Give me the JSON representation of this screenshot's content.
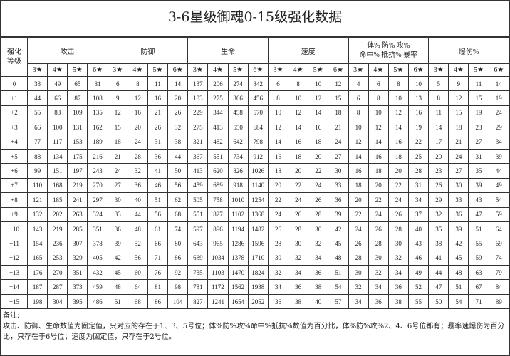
{
  "title": "3-6星级御魂0-15级强化数据",
  "level_header": "强化等级",
  "groups": [
    "攻击",
    "防御",
    "生命",
    "速度",
    "体% 防% 攻%\n命中% 抵抗% 暴率",
    "爆伤%"
  ],
  "stars": [
    "3★",
    "4★",
    "5★",
    "6★"
  ],
  "rows": [
    {
      "level": "0",
      "values": [
        33,
        49,
        65,
        81,
        6,
        8,
        11,
        14,
        137,
        206,
        274,
        342,
        6,
        8,
        10,
        12,
        4,
        6,
        8,
        10,
        5,
        9,
        11,
        14
      ]
    },
    {
      "level": "+1",
      "values": [
        44,
        66,
        87,
        108,
        9,
        12,
        16,
        20,
        183,
        275,
        366,
        456,
        8,
        10,
        12,
        15,
        6,
        8,
        10,
        13,
        8,
        12,
        15,
        19
      ]
    },
    {
      "level": "+2",
      "values": [
        55,
        83,
        109,
        135,
        12,
        16,
        21,
        26,
        229,
        344,
        458,
        570,
        10,
        12,
        14,
        18,
        8,
        10,
        12,
        16,
        11,
        15,
        19,
        24
      ]
    },
    {
      "level": "+3",
      "values": [
        66,
        100,
        131,
        162,
        15,
        20,
        26,
        32,
        275,
        413,
        550,
        684,
        12,
        14,
        16,
        21,
        10,
        12,
        14,
        19,
        14,
        18,
        23,
        29
      ]
    },
    {
      "level": "+4",
      "values": [
        77,
        117,
        153,
        189,
        18,
        24,
        31,
        38,
        321,
        482,
        642,
        798,
        14,
        16,
        18,
        24,
        12,
        14,
        16,
        22,
        17,
        21,
        27,
        34
      ]
    },
    {
      "level": "+5",
      "values": [
        88,
        134,
        175,
        216,
        21,
        28,
        36,
        44,
        367,
        551,
        734,
        912,
        16,
        18,
        20,
        27,
        14,
        16,
        18,
        25,
        20,
        24,
        31,
        39
      ]
    },
    {
      "level": "+6",
      "values": [
        99,
        151,
        197,
        243,
        24,
        32,
        41,
        50,
        413,
        620,
        826,
        1026,
        18,
        20,
        22,
        30,
        16,
        18,
        20,
        28,
        23,
        27,
        35,
        44
      ]
    },
    {
      "level": "+7",
      "values": [
        110,
        168,
        219,
        270,
        27,
        36,
        46,
        56,
        459,
        689,
        918,
        1140,
        20,
        22,
        24,
        33,
        18,
        20,
        22,
        31,
        26,
        30,
        39,
        49
      ]
    },
    {
      "level": "+8",
      "values": [
        121,
        185,
        241,
        297,
        30,
        40,
        51,
        62,
        505,
        758,
        1010,
        1254,
        22,
        24,
        26,
        36,
        20,
        22,
        24,
        34,
        29,
        33,
        43,
        54
      ]
    },
    {
      "level": "+9",
      "values": [
        132,
        202,
        263,
        324,
        33,
        44,
        56,
        68,
        551,
        827,
        1102,
        1368,
        24,
        26,
        28,
        39,
        22,
        24,
        26,
        37,
        32,
        36,
        47,
        59
      ]
    },
    {
      "level": "+10",
      "values": [
        143,
        219,
        285,
        351,
        36,
        48,
        61,
        74,
        597,
        896,
        1194,
        1482,
        26,
        28,
        30,
        42,
        24,
        26,
        28,
        40,
        35,
        39,
        51,
        64
      ]
    },
    {
      "level": "+11",
      "values": [
        154,
        236,
        307,
        378,
        39,
        52,
        66,
        80,
        643,
        965,
        1286,
        1596,
        28,
        30,
        32,
        45,
        26,
        28,
        30,
        43,
        38,
        42,
        55,
        69
      ]
    },
    {
      "level": "+12",
      "values": [
        165,
        253,
        329,
        405,
        42,
        56,
        71,
        86,
        689,
        1034,
        1378,
        1710,
        30,
        32,
        34,
        48,
        28,
        30,
        32,
        46,
        41,
        45,
        59,
        74
      ]
    },
    {
      "level": "+13",
      "values": [
        176,
        270,
        351,
        432,
        45,
        60,
        76,
        92,
        735,
        1103,
        1470,
        1824,
        32,
        34,
        36,
        51,
        30,
        32,
        34,
        49,
        44,
        48,
        63,
        79
      ]
    },
    {
      "level": "+14",
      "values": [
        187,
        287,
        373,
        459,
        48,
        64,
        81,
        98,
        781,
        1172,
        1562,
        1938,
        34,
        36,
        38,
        54,
        32,
        34,
        36,
        52,
        47,
        51,
        67,
        84
      ]
    },
    {
      "level": "+15",
      "values": [
        198,
        304,
        395,
        486,
        51,
        68,
        86,
        104,
        827,
        1241,
        1654,
        2052,
        36,
        38,
        40,
        57,
        34,
        36,
        38,
        55,
        50,
        54,
        71,
        89
      ]
    }
  ],
  "note": {
    "label": "备注:",
    "text": "攻击、防御、生命数值为固定值，只对应的存在于1、3、5号位；体%防%攻%命中%抵抗%数值为百分比，体%防%攻%2、4、6号位都有；暴率速爆伤为百分比，只存在于6号位；速度为固定值，只存在于2号位。"
  }
}
